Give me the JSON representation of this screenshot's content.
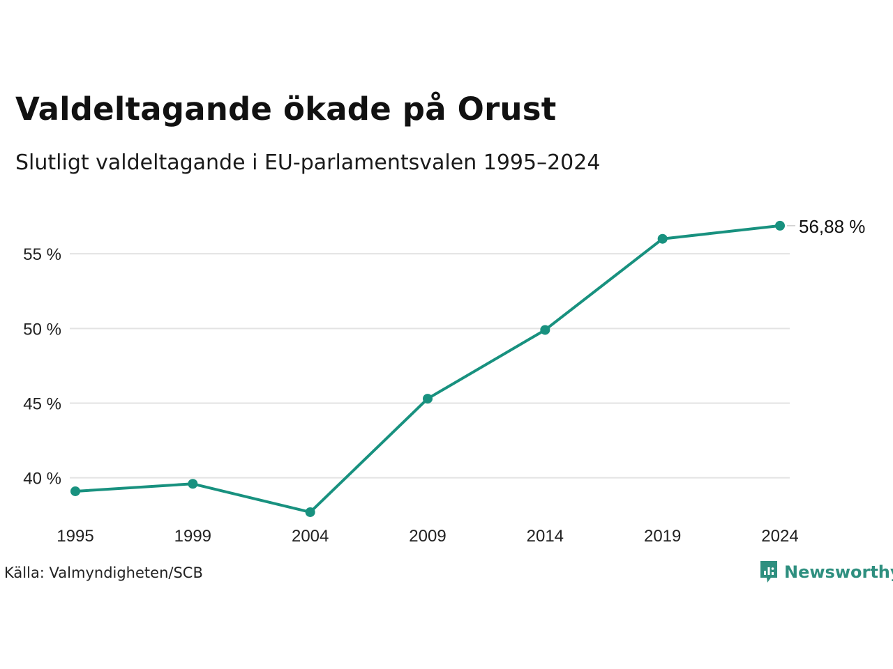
{
  "title": "Valdeltagande ökade på Orust",
  "subtitle": "Slutligt valdeltagande i EU-parlamentsvalen 1995–2024",
  "source": "Källa: Valmyndigheten/SCB",
  "brand": {
    "name": "Newsworthy",
    "icon": "newsworthy-logo-icon",
    "color": "#2e8f7f"
  },
  "colors": {
    "line": "#18917f",
    "grid": "#e3e3e3"
  },
  "chart_data": {
    "type": "line",
    "x": [
      "1995",
      "1999",
      "2004",
      "2009",
      "2014",
      "2019",
      "2024"
    ],
    "series": [
      {
        "values": [
          39.1,
          39.6,
          37.7,
          45.3,
          49.9,
          56.0,
          56.88
        ]
      }
    ],
    "ylim": [
      35.6,
      58.6
    ],
    "yticks": [
      40,
      45,
      50,
      55
    ],
    "ytick_labels": [
      "40 %",
      "45 %",
      "50 %",
      "55 %"
    ],
    "end_label": "56,88 %",
    "grid": true,
    "legend": "none"
  }
}
